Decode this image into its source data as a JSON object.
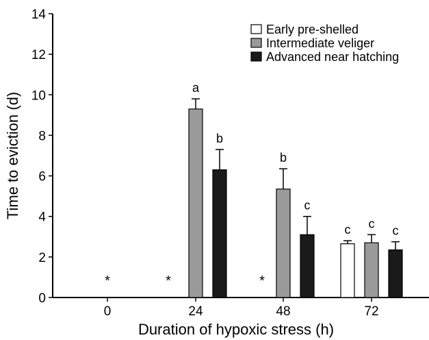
{
  "chart_data": {
    "type": "bar",
    "xlabel": "Duration of hypoxic stress (h)",
    "ylabel": "Time to eviction (d)",
    "ylim": [
      0,
      14
    ],
    "yticks": [
      0,
      2,
      4,
      6,
      8,
      10,
      12,
      14
    ],
    "categories": [
      "0",
      "24",
      "48",
      "72"
    ],
    "legend_position": "top-right",
    "series": [
      {
        "name": "Early pre-shelled",
        "color": "#ffffff",
        "values": [
          null,
          null,
          null,
          2.65
        ],
        "errors": [
          null,
          null,
          null,
          0.15
        ],
        "labels": [
          "*",
          "",
          "",
          "c"
        ]
      },
      {
        "name": "Intermediate veliger",
        "color": "#9a9a9a",
        "values": [
          null,
          9.3,
          5.35,
          2.7
        ],
        "errors": [
          null,
          0.5,
          1.0,
          0.4
        ],
        "labels": [
          "",
          "a",
          "b",
          "c"
        ]
      },
      {
        "name": "Advanced near hatching",
        "color": "#1a1a1a",
        "values": [
          null,
          6.3,
          3.1,
          2.35
        ],
        "errors": [
          null,
          1.0,
          0.9,
          0.4
        ],
        "labels": [
          "",
          "b",
          "c",
          "c"
        ]
      }
    ],
    "markers": [
      {
        "text": "*",
        "category": "0",
        "series": 1
      },
      {
        "text": "*",
        "category": "24",
        "series": 0
      },
      {
        "text": "*",
        "category": "48",
        "series": 0
      }
    ]
  }
}
